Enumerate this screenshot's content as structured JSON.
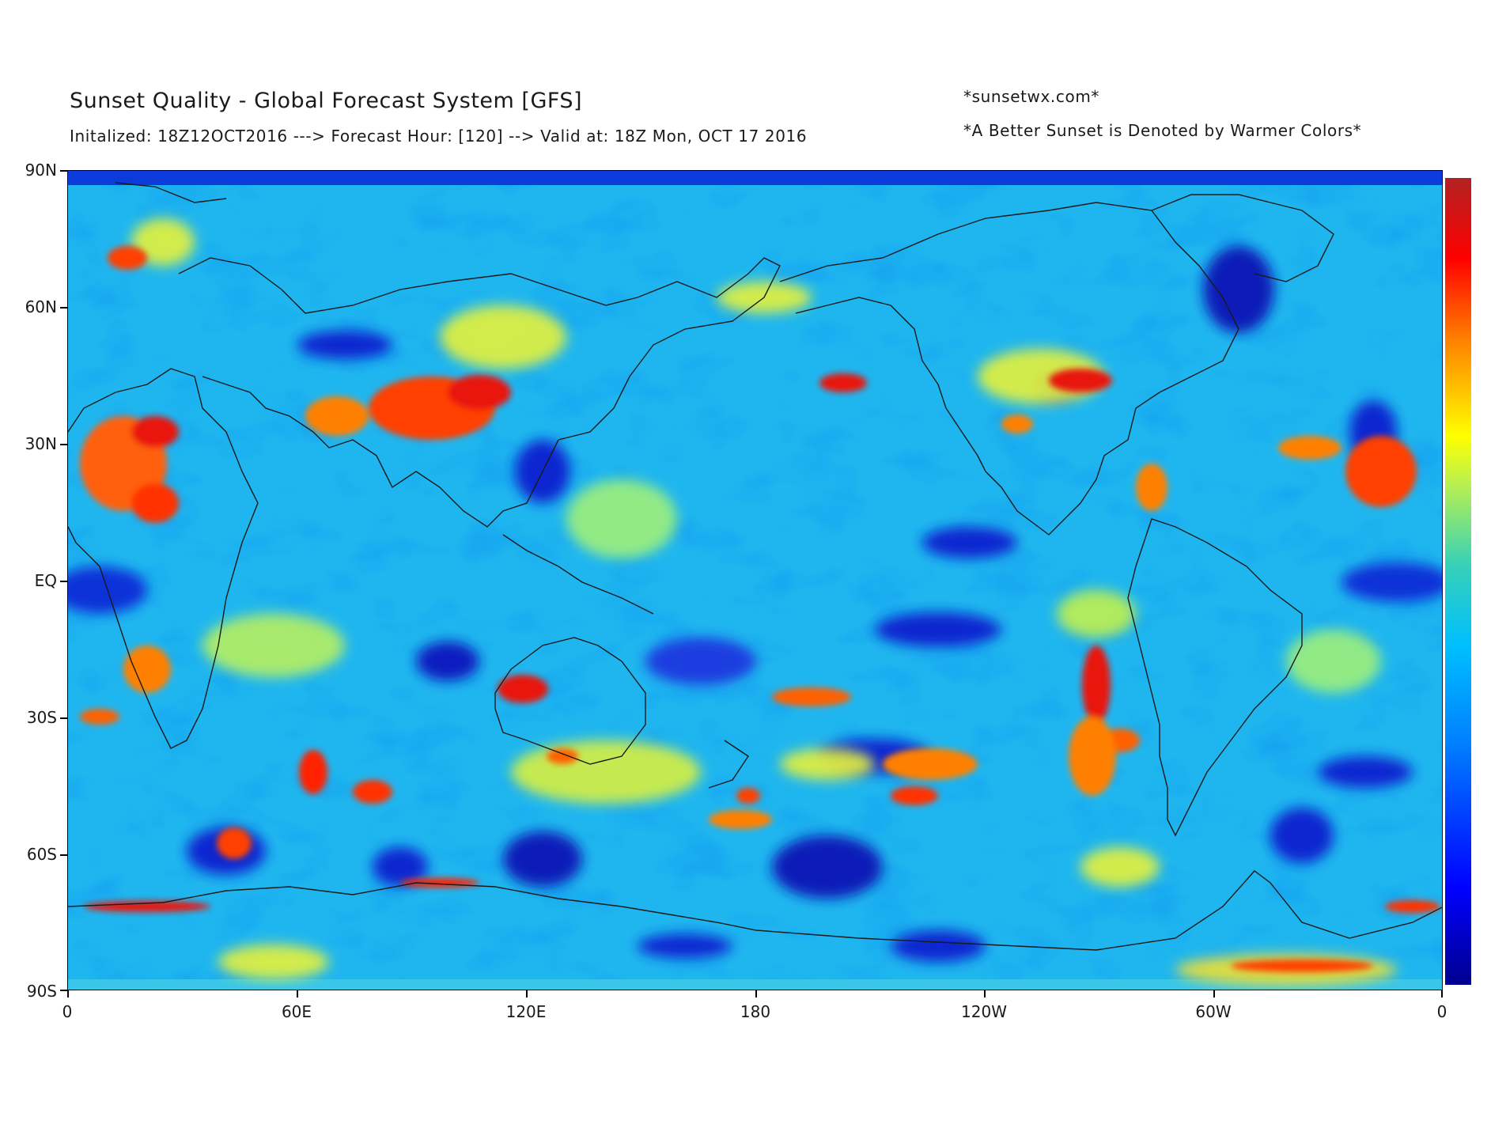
{
  "header": {
    "title": "Sunset Quality - Global Forecast System [GFS]",
    "subtitle": "Initalized: 18Z12OCT2016 ---> Forecast Hour: [120] --> Valid at: 18Z Mon, OCT 17 2016",
    "site": "*sunsetwx.com*",
    "note": "*A Better Sunset is Denoted by Warmer Colors*"
  },
  "axes": {
    "lat_ticks": [
      "90N",
      "60N",
      "30N",
      "EQ",
      "30S",
      "60S",
      "90S"
    ],
    "lon_ticks": [
      "0",
      "60E",
      "120E",
      "180",
      "120W",
      "60W",
      "0"
    ]
  },
  "colorscale": {
    "name": "jet",
    "stops": [
      "#00008f",
      "#0000ff",
      "#00bfff",
      "#36d1b8",
      "#ffff00",
      "#ff8000",
      "#ff0000",
      "#b22222"
    ],
    "meaning": "warmer colors = better sunset"
  }
}
